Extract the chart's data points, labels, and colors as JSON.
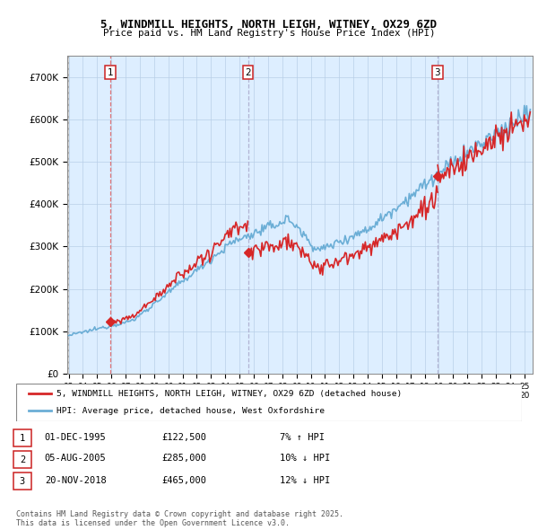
{
  "title": "5, WINDMILL HEIGHTS, NORTH LEIGH, WITNEY, OX29 6ZD",
  "subtitle": "Price paid vs. HM Land Registry's House Price Index (HPI)",
  "ylim": [
    0,
    750000
  ],
  "yticks": [
    0,
    100000,
    200000,
    300000,
    400000,
    500000,
    600000,
    700000
  ],
  "ytick_labels": [
    "£0",
    "£100K",
    "£200K",
    "£300K",
    "£400K",
    "£500K",
    "£600K",
    "£700K"
  ],
  "hpi_color": "#6baed6",
  "hpi_fill_color": "#c6dbef",
  "price_color": "#d62728",
  "bg_color": "#ddeeff",
  "grid_color": "#b8cfe8",
  "sale_dates_str": [
    "1995-12-01",
    "2005-08-05",
    "2018-11-20"
  ],
  "sale_prices": [
    122500,
    285000,
    465000
  ],
  "sale_labels": [
    "1",
    "2",
    "3"
  ],
  "vline_colors": [
    "#e06060",
    "#aaaacc",
    "#aaaacc"
  ],
  "vline_styles": [
    "--",
    "--",
    "--"
  ],
  "annotation_box_color": "#cc2222",
  "legend_price_label": "5, WINDMILL HEIGHTS, NORTH LEIGH, WITNEY, OX29 6ZD (detached house)",
  "legend_hpi_label": "HPI: Average price, detached house, West Oxfordshire",
  "table_rows": [
    [
      "1",
      "01-DEC-1995",
      "£122,500",
      "7% ↑ HPI"
    ],
    [
      "2",
      "05-AUG-2005",
      "£285,000",
      "10% ↓ HPI"
    ],
    [
      "3",
      "20-NOV-2018",
      "£465,000",
      "12% ↓ HPI"
    ]
  ],
  "footer": "Contains HM Land Registry data © Crown copyright and database right 2025.\nThis data is licensed under the Open Government Licence v3.0.",
  "xstart_year": 1993,
  "xend_year": 2025,
  "hpi_noise_scale": 0.018,
  "price_noise_scale": 0.025
}
